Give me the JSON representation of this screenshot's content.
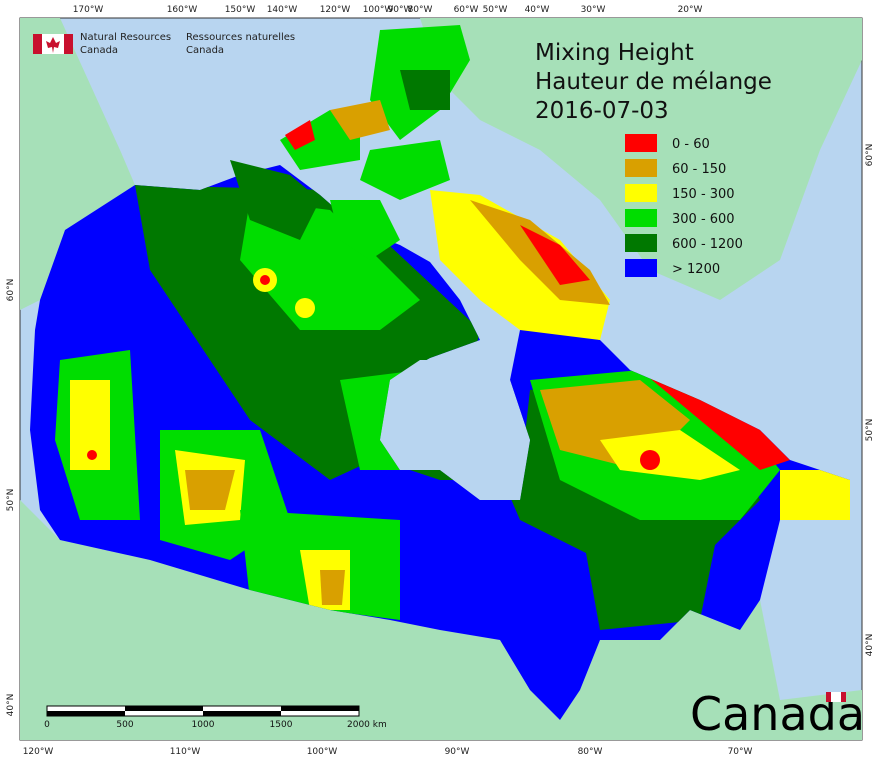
{
  "header": {
    "agency_en": [
      "Natural Resources",
      "Canada"
    ],
    "agency_fr": [
      "Ressources naturelles",
      "Canada"
    ]
  },
  "title": {
    "lines": [
      "Mixing Height",
      "Hauteur de mélange",
      "2016-07-03"
    ]
  },
  "legend": {
    "entries": [
      {
        "label": "0 - 60",
        "color": "#ff0000"
      },
      {
        "label": "60 - 150",
        "color": "#d9a000"
      },
      {
        "label": "150 - 300",
        "color": "#ffff00"
      },
      {
        "label": "300 - 600",
        "color": "#00dd00"
      },
      {
        "label": "600 - 1200",
        "color": "#007800"
      },
      {
        "label": "> 1200",
        "color": "#0000ff"
      }
    ]
  },
  "graticule": {
    "top": [
      "170°W",
      "160°W",
      "150°W",
      "140°W",
      "120°W",
      "100°W",
      "90°W",
      "80°W",
      "60°W",
      "50°W",
      "40°W",
      "30°W",
      "20°W"
    ],
    "bottom": [
      "120°W",
      "110°W",
      "100°W",
      "90°W",
      "80°W",
      "70°W"
    ],
    "left": [
      "60°N",
      "50°N",
      "40°N"
    ],
    "right": [
      "60°N",
      "50°N",
      "40°N"
    ]
  },
  "scale_bar": {
    "labels": [
      "0",
      "500",
      "1000",
      "1500",
      "2000  km"
    ]
  },
  "wordmark": "Canada"
}
